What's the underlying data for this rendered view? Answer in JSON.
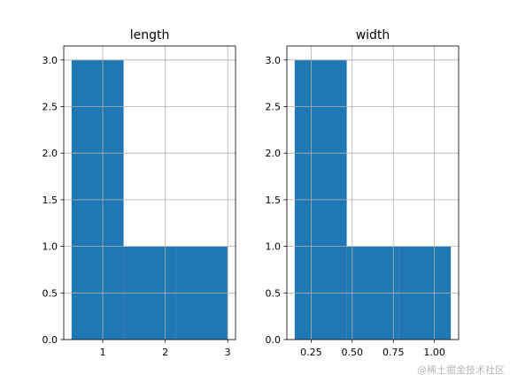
{
  "chart_data": [
    {
      "type": "bar",
      "subtype": "histogram",
      "title": "length",
      "xlabel": "",
      "ylabel": "",
      "bins": [
        {
          "x0": 0.5,
          "x1": 1.3333,
          "count": 3
        },
        {
          "x0": 1.3333,
          "x1": 2.1667,
          "count": 1
        },
        {
          "x0": 2.1667,
          "x1": 3.0,
          "count": 1
        }
      ],
      "xlim": [
        0.375,
        3.125
      ],
      "ylim": [
        0,
        3.15
      ],
      "xticks": [
        1,
        2,
        3
      ],
      "xtick_labels": [
        "1",
        "2",
        "3"
      ],
      "yticks": [
        0,
        0.5,
        1,
        1.5,
        2,
        2.5,
        3
      ],
      "ytick_labels": [
        "0.0",
        "0.5",
        "1.0",
        "1.5",
        "2.0",
        "2.5",
        "3.0"
      ],
      "grid": true,
      "color": "#1f77b4"
    },
    {
      "type": "bar",
      "subtype": "histogram",
      "title": "width",
      "xlabel": "",
      "ylabel": "",
      "bins": [
        {
          "x0": 0.15,
          "x1": 0.4667,
          "count": 3
        },
        {
          "x0": 0.4667,
          "x1": 0.7833,
          "count": 1
        },
        {
          "x0": 0.7833,
          "x1": 1.1,
          "count": 1
        }
      ],
      "xlim": [
        0.1025,
        1.1475
      ],
      "ylim": [
        0,
        3.15
      ],
      "xticks": [
        0.25,
        0.5,
        0.75,
        1.0
      ],
      "xtick_labels": [
        "0.25",
        "0.50",
        "0.75",
        "1.00"
      ],
      "yticks": [
        0,
        0.5,
        1,
        1.5,
        2,
        2.5,
        3
      ],
      "ytick_labels": [
        "0.0",
        "0.5",
        "1.0",
        "1.5",
        "2.0",
        "2.5",
        "3.0"
      ],
      "grid": true,
      "color": "#1f77b4"
    }
  ],
  "watermark": "@稀土掘金技术社区"
}
